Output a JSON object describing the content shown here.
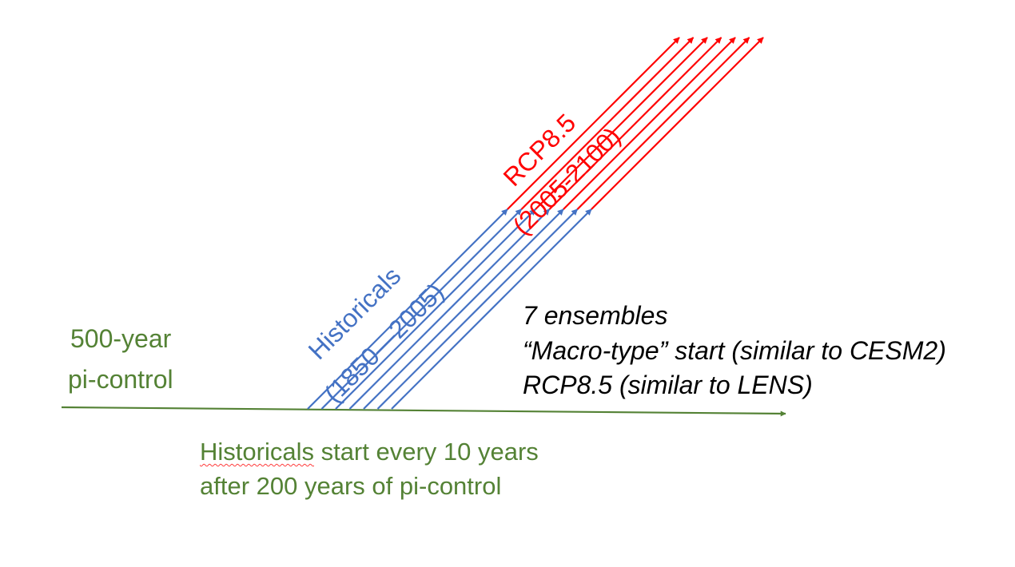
{
  "colors": {
    "control": "#548235",
    "historical": "#4472c4",
    "rcp": "#ff0000",
    "note": "#000000"
  },
  "labels": {
    "control_line1": "500-year",
    "control_line2": "pi-control",
    "hist_title": "Historicals",
    "hist_years": "(1850—2005)",
    "rcp_title": "RCP8.5",
    "rcp_years": "(2005-2100)",
    "note_line1": "7 ensembles",
    "note_line2": "“Macro-type” start (similar to CESM2)",
    "note_line3": "RCP8.5 (similar to LENS)",
    "caption_word": "Historicals",
    "caption_rest1": " start every 10 years",
    "caption_line2": "after 200 years of pi-control"
  },
  "ensemble_members": 7
}
